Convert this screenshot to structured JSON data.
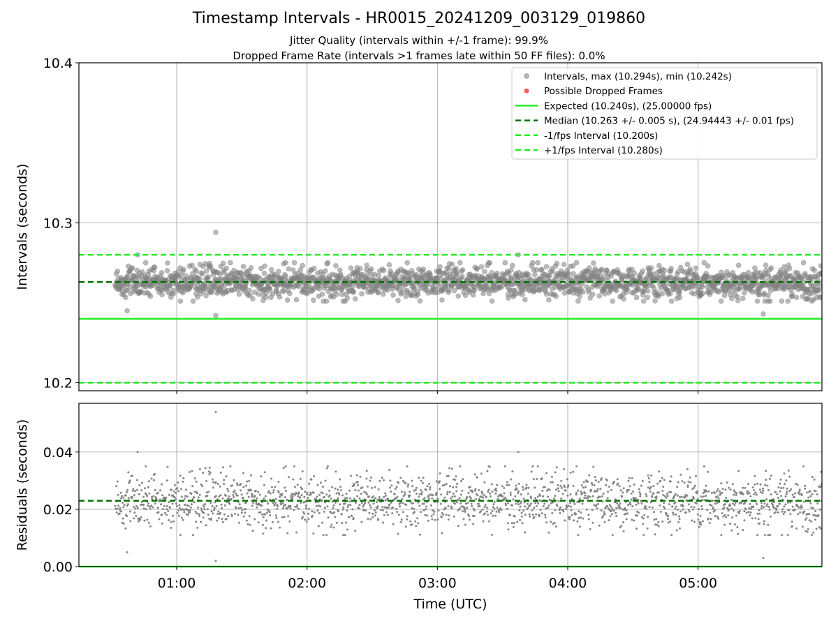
{
  "title": "Timestamp Intervals - HR0015_20241209_003129_019860",
  "subtitles": [
    "Jitter Quality (intervals within +/-1 frame): 99.9%",
    "Dropped Frame Rate (intervals >1 frames late within 50 FF files): 0.0%"
  ],
  "colors": {
    "points": "#808080",
    "dropped": "#f06060",
    "expected": "#22ee22",
    "median": "#007000",
    "fps_band": "#22ee22",
    "grid": "#b0b0b0"
  },
  "chart_data": [
    {
      "type": "scatter",
      "id": "intervals",
      "ylabel": "Intervals (seconds)",
      "xlabel": "",
      "ylim": [
        10.195,
        10.4
      ],
      "yticks": [
        10.2,
        10.3,
        10.4
      ],
      "ytick_labels": [
        "10.2",
        "10.3",
        "10.4"
      ],
      "xlim_hours": [
        0.25,
        5.95
      ],
      "xticks_hours": [
        1,
        2,
        3,
        4,
        5
      ],
      "grid": true,
      "legend_position": "top-right",
      "legend": [
        {
          "label": "Intervals, max (10.294s), min (10.242s)",
          "marker": "dot-gray"
        },
        {
          "label": "Possible Dropped Frames",
          "marker": "dot-red"
        },
        {
          "label": "Expected (10.240s), (25.00000 fps)",
          "marker": "line-solid-lightgreen"
        },
        {
          "label": "Median (10.263 +/- 0.005 s), (24.94443 +/- 0.01 fps)",
          "marker": "line-dashed-darkgreen"
        },
        {
          "label": "-1/fps Interval (10.200s)",
          "marker": "line-dashed-lightgreen"
        },
        {
          "label": "+1/fps Interval (10.280s)",
          "marker": "line-dashed-lightgreen"
        }
      ],
      "series": [
        {
          "kind": "points",
          "label_ref": 0,
          "x_range_hours": [
            0.53,
            5.95
          ],
          "y_median": 10.263,
          "y_spread": 0.005,
          "count": 1900,
          "outliers": [
            {
              "x": 1.3,
              "y": 10.294
            },
            {
              "x": 1.3,
              "y": 10.242
            },
            {
              "x": 0.7,
              "y": 10.28
            },
            {
              "x": 3.62,
              "y": 10.28
            },
            {
              "x": 5.5,
              "y": 10.243
            },
            {
              "x": 0.62,
              "y": 10.245
            }
          ]
        },
        {
          "kind": "hline",
          "name": "Expected",
          "y": 10.24,
          "style": "solid"
        },
        {
          "kind": "hline",
          "name": "Median",
          "y": 10.263,
          "style": "dashed"
        },
        {
          "kind": "hline",
          "name": "-1/fps Interval",
          "y": 10.2,
          "style": "dashed"
        },
        {
          "kind": "hline",
          "name": "+1/fps Interval",
          "y": 10.28,
          "style": "dashed"
        }
      ]
    },
    {
      "type": "scatter",
      "id": "residuals",
      "ylabel": "Residuals (seconds)",
      "xlabel": "Time (UTC)",
      "ylim": [
        0.0,
        0.057
      ],
      "yticks": [
        0.0,
        0.02,
        0.04
      ],
      "ytick_labels": [
        "0.00",
        "0.02",
        "0.04"
      ],
      "xlim_hours": [
        0.25,
        5.95
      ],
      "xticks_hours": [
        1,
        2,
        3,
        4,
        5
      ],
      "xtick_labels": [
        "01:00",
        "02:00",
        "03:00",
        "04:00",
        "05:00"
      ],
      "grid": true,
      "series": [
        {
          "kind": "points",
          "x_range_hours": [
            0.53,
            5.95
          ],
          "y_median": 0.023,
          "y_spread": 0.005,
          "count": 1900,
          "outliers": [
            {
              "x": 1.3,
              "y": 0.054
            },
            {
              "x": 1.3,
              "y": 0.002
            },
            {
              "x": 0.7,
              "y": 0.04
            },
            {
              "x": 3.62,
              "y": 0.04
            },
            {
              "x": 5.5,
              "y": 0.003
            },
            {
              "x": 0.62,
              "y": 0.005
            }
          ]
        },
        {
          "kind": "hline",
          "name": "Median residual",
          "y": 0.023,
          "style": "dashed"
        },
        {
          "kind": "hline",
          "name": "Zero",
          "y": 0.0,
          "style": "solid"
        }
      ]
    }
  ]
}
